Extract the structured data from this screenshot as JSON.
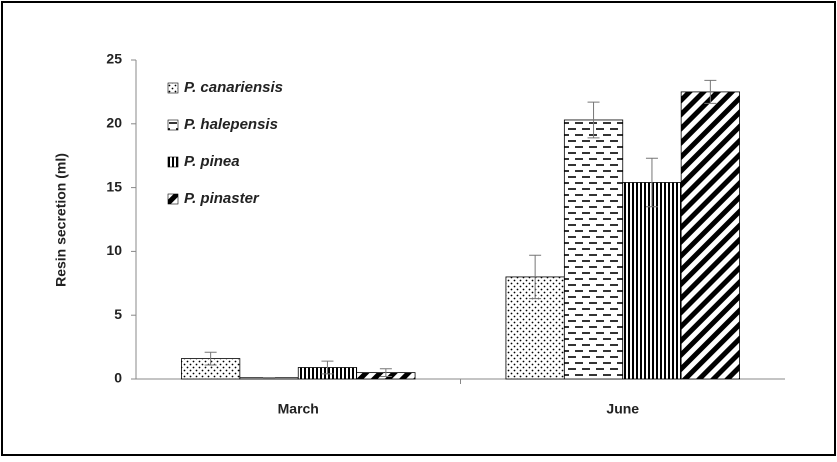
{
  "chart_data": {
    "type": "bar",
    "y_label": "Resin secretion (ml)",
    "categories": [
      "March",
      "June"
    ],
    "series": [
      {
        "name": "P. canariensis",
        "color": "#000000",
        "pattern": "dots",
        "values": [
          1.6,
          8.0
        ],
        "errors": [
          0.5,
          1.7
        ]
      },
      {
        "name": "P. halepensis",
        "color": "#000000",
        "pattern": "dashes",
        "values": [
          0.1,
          20.3
        ],
        "errors": [
          0,
          1.4
        ]
      },
      {
        "name": "P. pinea",
        "color": "#000000",
        "pattern": "vertical",
        "values": [
          0.9,
          15.4
        ],
        "errors": [
          0.5,
          1.9
        ]
      },
      {
        "name": "P. pinaster",
        "color": "#000000",
        "pattern": "diagonal",
        "values": [
          0.5,
          22.5
        ],
        "errors": [
          0.3,
          0.9
        ]
      }
    ],
    "ylim": [
      0,
      25
    ],
    "yticks": [
      0,
      5,
      10,
      15,
      20,
      25
    ],
    "grid": false,
    "legend": "top-left"
  }
}
